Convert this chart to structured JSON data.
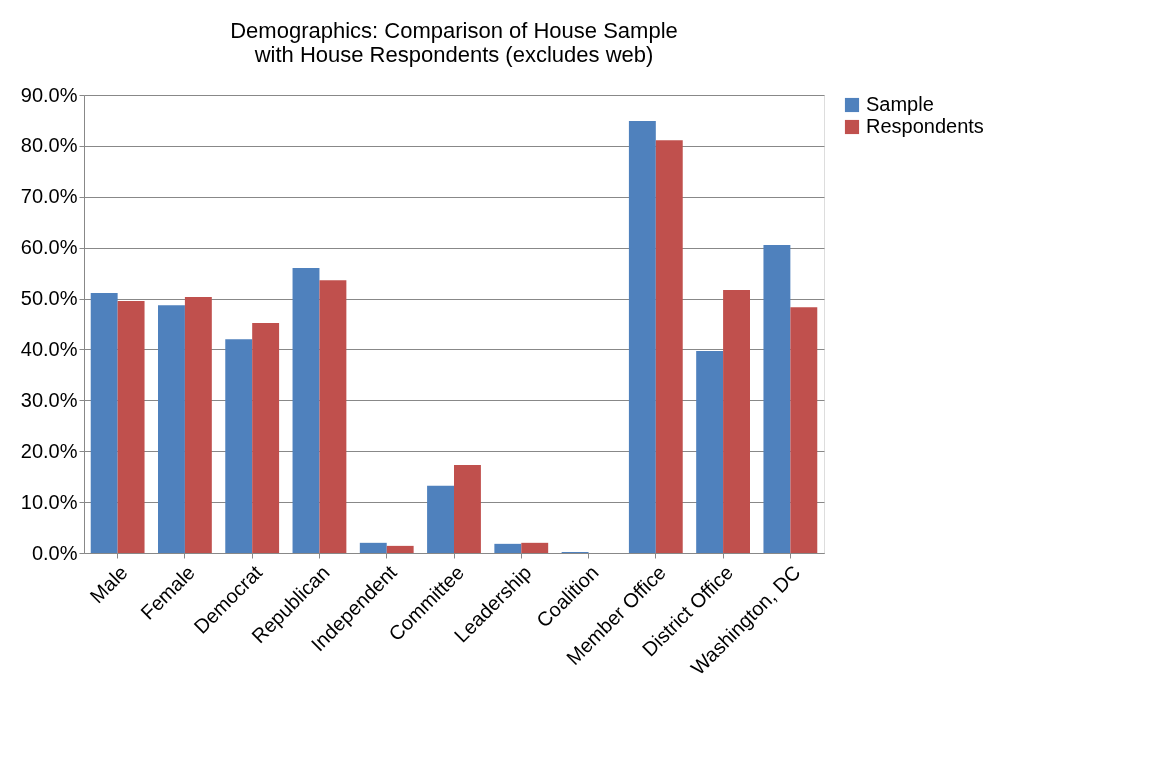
{
  "chart_data": {
    "type": "bar",
    "title": [
      "Demographics: Comparison of House Sample",
      "with House Respondents (excludes web)"
    ],
    "categories": [
      "Male",
      "Female",
      "Democrat",
      "Republican",
      "Independent",
      "Committee",
      "Leadership",
      "Coalition",
      "Member Office",
      "District Office",
      "Washington, DC"
    ],
    "series": [
      {
        "name": "Sample",
        "color": "#4f81bd",
        "values": [
          51.1,
          48.7,
          42.0,
          56.0,
          2.0,
          13.2,
          1.8,
          0.2,
          84.9,
          39.7,
          60.5
        ]
      },
      {
        "name": "Respondents",
        "color": "#c0504d",
        "values": [
          49.5,
          50.3,
          45.2,
          53.6,
          1.4,
          17.3,
          2.0,
          0.0,
          81.1,
          51.7,
          48.3
        ]
      }
    ],
    "ylim": [
      0,
      90
    ],
    "yticks": [
      {
        "value": 0,
        "label": "0.0%"
      },
      {
        "value": 10,
        "label": "10.0%"
      },
      {
        "value": 20,
        "label": "20.0%"
      },
      {
        "value": 30,
        "label": "30.0%"
      },
      {
        "value": 40,
        "label": "40.0%"
      },
      {
        "value": 50,
        "label": "50.0%"
      },
      {
        "value": 60,
        "label": "60.0%"
      },
      {
        "value": 70,
        "label": "70.0%"
      },
      {
        "value": 80,
        "label": "80.0%"
      },
      {
        "value": 90,
        "label": "90.0%"
      }
    ],
    "grid": "y",
    "legend": "right"
  }
}
